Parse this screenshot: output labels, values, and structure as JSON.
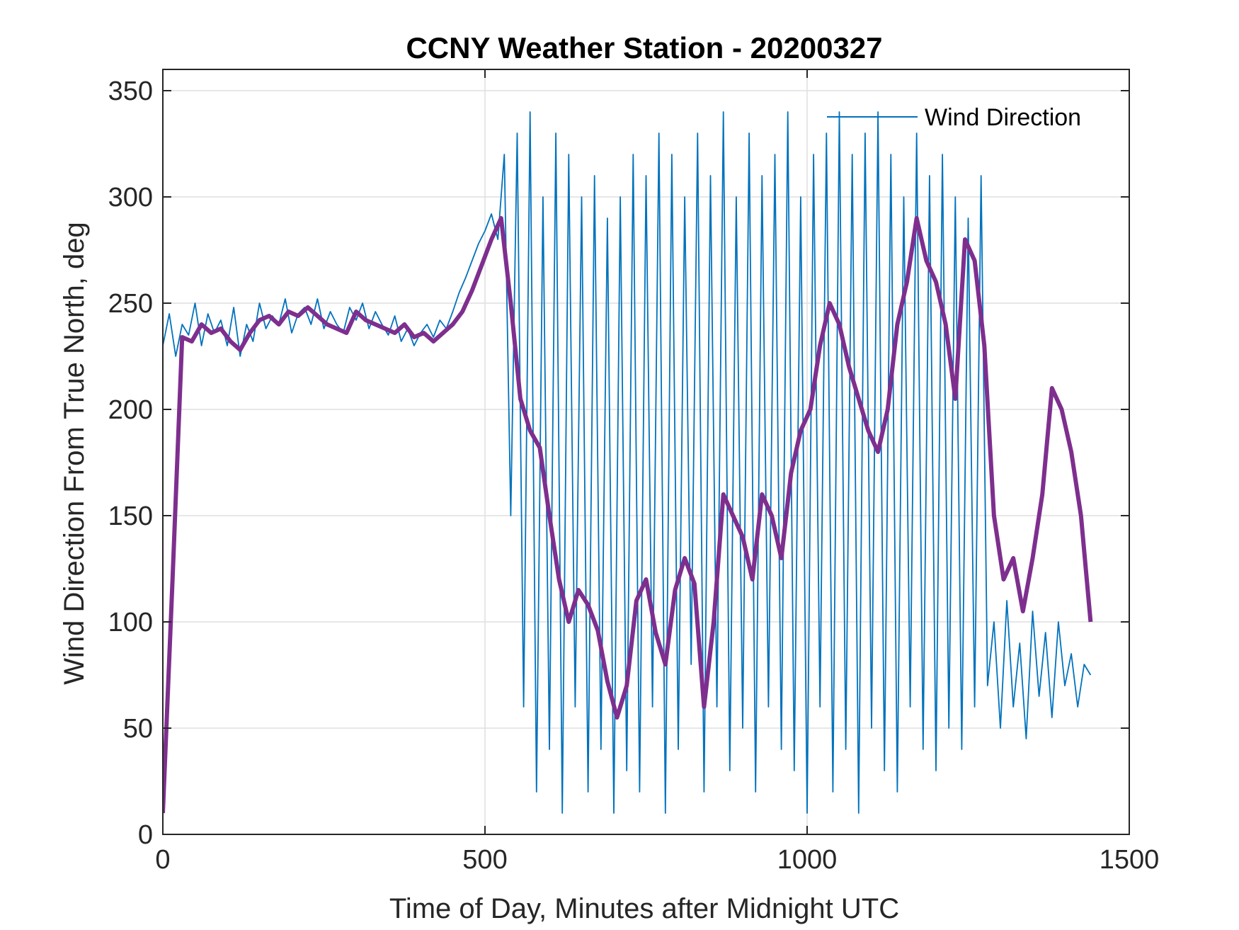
{
  "chart_data": {
    "type": "line",
    "title": "CCNY Weather Station - 20200327",
    "xlabel": "Time of Day, Minutes after Midnight UTC",
    "ylabel": "Wind Direction From True North, deg",
    "xlim": [
      0,
      1500
    ],
    "ylim": [
      0,
      360
    ],
    "xticks": [
      0,
      500,
      1000,
      1500
    ],
    "yticks": [
      0,
      50,
      100,
      150,
      200,
      250,
      300,
      350
    ],
    "grid": true,
    "legend": {
      "location": "top-right",
      "entries": [
        "Wind Direction"
      ]
    },
    "colors": {
      "raw": "#0072BD",
      "smoothed": "#7E2F8E"
    },
    "series": [
      {
        "name": "Wind Direction",
        "style": "thin",
        "x": [
          0,
          10,
          20,
          30,
          40,
          50,
          60,
          70,
          80,
          90,
          100,
          110,
          120,
          130,
          140,
          150,
          160,
          170,
          180,
          190,
          200,
          210,
          220,
          230,
          240,
          250,
          260,
          270,
          280,
          290,
          300,
          310,
          320,
          330,
          340,
          350,
          360,
          370,
          380,
          390,
          400,
          410,
          420,
          430,
          440,
          450,
          460,
          470,
          480,
          490,
          500,
          510,
          520,
          530,
          540,
          550,
          560,
          570,
          580,
          590,
          600,
          610,
          620,
          630,
          640,
          650,
          660,
          670,
          680,
          690,
          700,
          710,
          720,
          730,
          740,
          750,
          760,
          770,
          780,
          790,
          800,
          810,
          820,
          830,
          840,
          850,
          860,
          870,
          880,
          890,
          900,
          910,
          920,
          930,
          940,
          950,
          960,
          970,
          980,
          990,
          1000,
          1010,
          1020,
          1030,
          1040,
          1050,
          1060,
          1070,
          1080,
          1090,
          1100,
          1110,
          1120,
          1130,
          1140,
          1150,
          1160,
          1170,
          1180,
          1190,
          1200,
          1210,
          1220,
          1230,
          1240,
          1250,
          1260,
          1270,
          1280,
          1290,
          1300,
          1310,
          1320,
          1330,
          1340,
          1350,
          1360,
          1370,
          1380,
          1390,
          1400,
          1410,
          1420,
          1430,
          1440
        ],
        "y": [
          230,
          245,
          225,
          240,
          235,
          250,
          230,
          245,
          236,
          242,
          230,
          248,
          225,
          240,
          232,
          250,
          238,
          244,
          240,
          252,
          236,
          245,
          248,
          240,
          252,
          238,
          246,
          240,
          236,
          248,
          242,
          250,
          238,
          246,
          240,
          235,
          244,
          232,
          238,
          230,
          236,
          240,
          234,
          242,
          238,
          246,
          255,
          262,
          270,
          278,
          284,
          292,
          280,
          320,
          150,
          330,
          60,
          340,
          20,
          300,
          40,
          330,
          10,
          320,
          60,
          300,
          20,
          310,
          40,
          290,
          10,
          300,
          30,
          320,
          20,
          310,
          60,
          330,
          10,
          320,
          40,
          300,
          80,
          330,
          20,
          310,
          60,
          340,
          30,
          300,
          50,
          330,
          20,
          310,
          60,
          320,
          40,
          340,
          30,
          300,
          10,
          320,
          60,
          330,
          20,
          340,
          40,
          320,
          10,
          330,
          50,
          340,
          30,
          320,
          20,
          300,
          60,
          330,
          40,
          310,
          30,
          320,
          50,
          300,
          40,
          290,
          60,
          310,
          70,
          100,
          50,
          110,
          60,
          90,
          45,
          105,
          65,
          95,
          55,
          100,
          70,
          85,
          60,
          80,
          75
        ]
      },
      {
        "name": "",
        "style": "thick",
        "x": [
          0,
          15,
          30,
          45,
          60,
          75,
          90,
          105,
          120,
          135,
          150,
          165,
          180,
          195,
          210,
          225,
          240,
          255,
          270,
          285,
          300,
          315,
          330,
          345,
          360,
          375,
          390,
          405,
          420,
          435,
          450,
          465,
          480,
          495,
          510,
          525,
          540,
          555,
          570,
          585,
          600,
          615,
          630,
          645,
          660,
          675,
          690,
          705,
          720,
          735,
          750,
          765,
          780,
          795,
          810,
          825,
          840,
          855,
          870,
          885,
          900,
          915,
          930,
          945,
          960,
          975,
          990,
          1005,
          1020,
          1035,
          1050,
          1065,
          1080,
          1095,
          1110,
          1125,
          1140,
          1155,
          1170,
          1185,
          1200,
          1215,
          1230,
          1245,
          1260,
          1275,
          1290,
          1305,
          1320,
          1335,
          1350,
          1365,
          1380,
          1395,
          1410,
          1425,
          1440
        ],
        "y": [
          10,
          120,
          234,
          232,
          240,
          236,
          238,
          232,
          228,
          236,
          242,
          244,
          240,
          246,
          244,
          248,
          244,
          240,
          238,
          236,
          246,
          242,
          240,
          238,
          236,
          240,
          234,
          236,
          232,
          236,
          240,
          246,
          256,
          268,
          280,
          290,
          250,
          205,
          190,
          182,
          150,
          120,
          100,
          115,
          108,
          96,
          72,
          55,
          70,
          110,
          120,
          95,
          80,
          115,
          130,
          118,
          60,
          100,
          160,
          150,
          140,
          120,
          160,
          150,
          130,
          170,
          190,
          200,
          230,
          250,
          240,
          220,
          205,
          190,
          180,
          200,
          240,
          260,
          290,
          270,
          260,
          240,
          205,
          280,
          270,
          230,
          150,
          120,
          130,
          105,
          130,
          160,
          210,
          200,
          180,
          150,
          100
        ]
      }
    ]
  }
}
